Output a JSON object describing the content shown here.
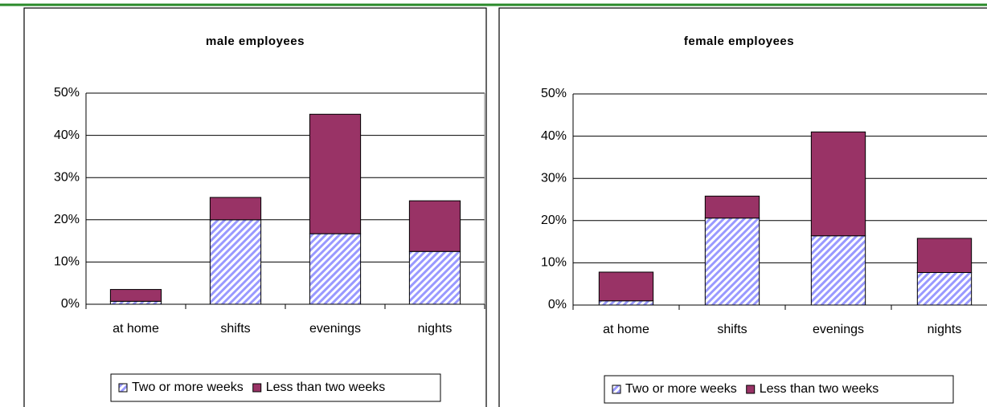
{
  "chart_data": [
    {
      "type": "bar",
      "stacked": true,
      "title": "male employees",
      "categories": [
        "at home",
        "shifts",
        "evenings",
        "nights"
      ],
      "series": [
        {
          "name": "Two or more weeks",
          "color": "#9999ff",
          "hatch": true,
          "values": [
            0.7,
            20,
            16.7,
            12.5
          ]
        },
        {
          "name": "Less than two weeks",
          "color": "#993366",
          "hatch": false,
          "values": [
            2.8,
            5.3,
            28.3,
            12
          ]
        }
      ],
      "ylim": [
        0,
        50
      ],
      "yticks": [
        {
          "value": 0,
          "label": "0%"
        },
        {
          "value": 10,
          "label": "10%"
        },
        {
          "value": 20,
          "label": "20%"
        },
        {
          "value": 30,
          "label": "30%"
        },
        {
          "value": 40,
          "label": "40%"
        },
        {
          "value": 50,
          "label": "50%"
        }
      ],
      "grid": true,
      "legend": "bottom"
    },
    {
      "type": "bar",
      "stacked": true,
      "title": "female employees",
      "categories": [
        "at home",
        "shifts",
        "evenings",
        "nights"
      ],
      "series": [
        {
          "name": "Two or more weeks",
          "color": "#9999ff",
          "hatch": true,
          "values": [
            1.0,
            20.6,
            16.4,
            7.7
          ]
        },
        {
          "name": "Less than two weeks",
          "color": "#993366",
          "hatch": false,
          "values": [
            6.8,
            5.2,
            24.6,
            8.1
          ]
        }
      ],
      "ylim": [
        0,
        50
      ],
      "yticks": [
        {
          "value": 0,
          "label": "0%"
        },
        {
          "value": 10,
          "label": "10%"
        },
        {
          "value": 20,
          "label": "20%"
        },
        {
          "value": 30,
          "label": "30%"
        },
        {
          "value": 40,
          "label": "40%"
        },
        {
          "value": 50,
          "label": "50%"
        }
      ],
      "grid": true,
      "legend": "bottom"
    }
  ]
}
